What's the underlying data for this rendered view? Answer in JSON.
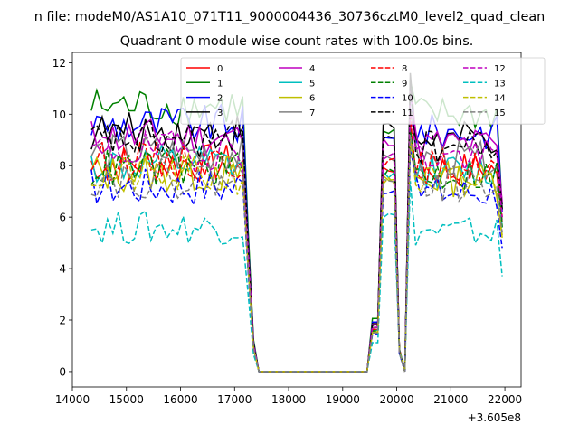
{
  "figure": {
    "suptitle": "n file: modeM0/AS1A10_071T11_9000004436_30736cztM0_level2_quad_clean"
  },
  "chart_data": {
    "type": "line",
    "title": "Quadrant 0 module wise count rates with 100.0s bins.",
    "xlabel": "",
    "ylabel": "",
    "x_offset_label": "+3.605e8",
    "xlim": [
      14000,
      22300
    ],
    "ylim": [
      -0.6,
      12.4
    ],
    "xticks": [
      14000,
      15000,
      16000,
      17000,
      18000,
      19000,
      20000,
      21000,
      22000
    ],
    "yticks": [
      0,
      2,
      4,
      6,
      8,
      10,
      12
    ],
    "grid": false,
    "legend_location": "upper center",
    "legend_columns": 4,
    "x_start": 14350,
    "bin_size": 100,
    "points_per_series": 77,
    "series_profile": {
      "drop_from": 17200,
      "drop_to": 17450,
      "gap_until": 19500,
      "rise_to": 19700,
      "peak_at": 19950,
      "dip1_at": 20050,
      "dip2_at": 20150,
      "recover_at": 20300,
      "tail_end": 21950
    },
    "series": [
      {
        "name": "0",
        "color": "#ff0000",
        "style": "solid",
        "base": 8.1,
        "noise": 0.35,
        "peak": 9.6,
        "end": 5.8
      },
      {
        "name": "1",
        "color": "#008000",
        "style": "solid",
        "base": 10.3,
        "noise": 0.35,
        "peak": 11.3,
        "end": 6.3
      },
      {
        "name": "2",
        "color": "#0000ff",
        "style": "solid",
        "base": 9.6,
        "noise": 0.35,
        "peak": 11.0,
        "end": 6.2
      },
      {
        "name": "3",
        "color": "#000000",
        "style": "solid",
        "base": 9.3,
        "noise": 0.35,
        "peak": 11.6,
        "end": 6.5
      },
      {
        "name": "4",
        "color": "#bf00bf",
        "style": "solid",
        "base": 9.1,
        "noise": 0.35,
        "peak": 10.9,
        "end": 6.6
      },
      {
        "name": "5",
        "color": "#00bfbf",
        "style": "solid",
        "base": 8.0,
        "noise": 0.35,
        "peak": 9.3,
        "end": 5.6
      },
      {
        "name": "6",
        "color": "#bfbf00",
        "style": "solid",
        "base": 7.7,
        "noise": 0.35,
        "peak": 9.1,
        "end": 5.3
      },
      {
        "name": "7",
        "color": "#808080",
        "style": "solid",
        "base": 8.5,
        "noise": 0.35,
        "peak": 10.1,
        "end": 5.9
      },
      {
        "name": "8",
        "color": "#ff0000",
        "style": "dashed",
        "base": 8.2,
        "noise": 0.35,
        "peak": 9.9,
        "end": 6.0
      },
      {
        "name": "9",
        "color": "#008000",
        "style": "dashed",
        "base": 7.9,
        "noise": 0.35,
        "peak": 9.4,
        "end": 5.6
      },
      {
        "name": "10",
        "color": "#0000ff",
        "style": "dashed",
        "base": 7.2,
        "noise": 0.35,
        "peak": 8.6,
        "end": 4.8
      },
      {
        "name": "11",
        "color": "#000000",
        "style": "dashed",
        "base": 9.0,
        "noise": 0.35,
        "peak": 11.2,
        "end": 6.3
      },
      {
        "name": "12",
        "color": "#bf00bf",
        "style": "dashed",
        "base": 8.6,
        "noise": 0.35,
        "peak": 10.2,
        "end": 6.0
      },
      {
        "name": "13",
        "color": "#00bfbf",
        "style": "dashed",
        "base": 5.6,
        "noise": 0.3,
        "peak": 7.4,
        "end": 3.7
      },
      {
        "name": "14",
        "color": "#bfbf00",
        "style": "dashed",
        "base": 7.6,
        "noise": 0.35,
        "peak": 9.0,
        "end": 5.2
      },
      {
        "name": "15",
        "color": "#808080",
        "style": "dashed",
        "base": 7.5,
        "noise": 0.35,
        "peak": 9.2,
        "end": 5.4
      }
    ]
  }
}
